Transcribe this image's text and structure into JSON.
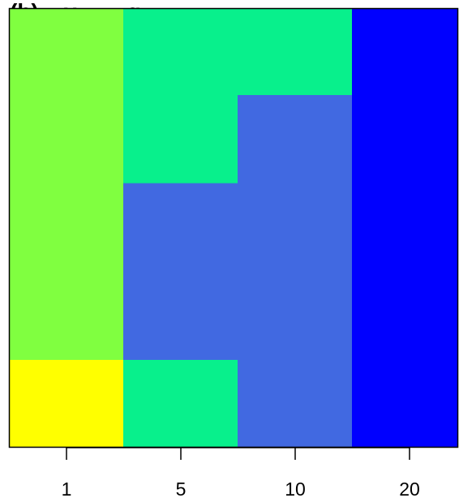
{
  "chart_data": {
    "type": "heatmap",
    "title": "(b) ...y ... ...g",
    "x_tick_labels": [
      "1",
      "5",
      "10",
      "20"
    ],
    "rows": 6,
    "colors": {
      "yellow": "#ffff00",
      "yellow_green": "#80ff40",
      "spring_green": "#08f08c",
      "royal_blue": "#4169e1",
      "blue": "#0000ff"
    },
    "columns": [
      [
        "yellow_green",
        "yellow_green",
        "yellow_green",
        "yellow_green",
        "yellow_green",
        "yellow"
      ],
      [
        "spring_green",
        "spring_green",
        "royal_blue",
        "royal_blue",
        "royal_blue",
        "spring_green"
      ],
      [
        "spring_green",
        "royal_blue",
        "royal_blue",
        "royal_blue",
        "royal_blue",
        "royal_blue"
      ],
      [
        "blue",
        "blue",
        "blue",
        "blue",
        "blue",
        "blue"
      ]
    ]
  }
}
